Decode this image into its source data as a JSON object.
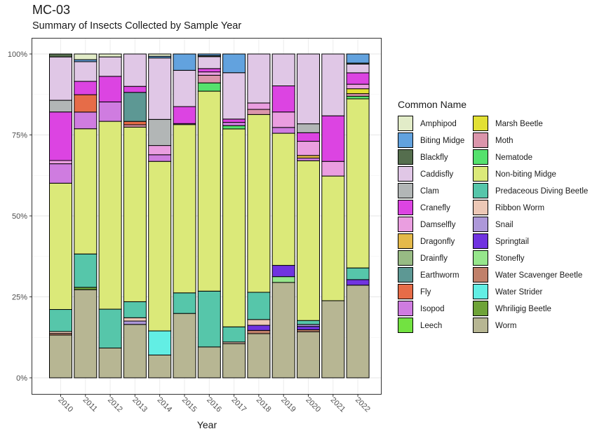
{
  "chart_data": {
    "type": "bar",
    "stacked": true,
    "normalized": true,
    "title": "MC-03",
    "subtitle": "Summary of Insects Collected by Sample Year",
    "xlabel": "Year",
    "ylabel": "",
    "ylim": [
      0,
      1
    ],
    "yticks": [
      "0%",
      "25%",
      "50%",
      "75%",
      "100%"
    ],
    "legend_title": "Common Name",
    "legend_position": "right",
    "categories": [
      "2010",
      "2011",
      "2012",
      "2013",
      "2014",
      "2015",
      "2016",
      "2017",
      "2018",
      "2019",
      "2020",
      "2021",
      "2022"
    ],
    "series": [
      {
        "name": "Amphipod",
        "color": "#e2ecc8",
        "values": [
          0,
          0.017,
          0.009,
          0,
          0.007,
          0,
          0,
          0,
          0,
          0,
          0,
          0,
          0
        ]
      },
      {
        "name": "Biting Midge",
        "color": "#62a2de",
        "values": [
          0,
          0.006,
          0,
          0,
          0.005,
          0.05,
          0.005,
          0.057,
          0,
          0,
          0,
          0,
          0.028
        ]
      },
      {
        "name": "Blackfly",
        "color": "#556e4e",
        "values": [
          0.009,
          0,
          0,
          0,
          0,
          0,
          0.003,
          0,
          0,
          0,
          0,
          0,
          0.003
        ]
      },
      {
        "name": "Caddisfly",
        "color": "#e0c7e6",
        "values": [
          0.134,
          0.059,
          0.06,
          0.097,
          0.186,
          0.111,
          0.036,
          0.141,
          0.153,
          0.099,
          0.212,
          0.19,
          0.027
        ]
      },
      {
        "name": "Clam",
        "color": "#b2b6b6",
        "values": [
          0.036,
          0,
          0,
          0,
          0.079,
          0,
          0,
          0,
          0,
          0,
          0.027,
          0,
          0
        ]
      },
      {
        "name": "Cranefly",
        "color": "#dc44e2",
        "values": [
          0.15,
          0.04,
          0.079,
          0.018,
          0,
          0.052,
          0.01,
          0.01,
          0,
          0.081,
          0.026,
          0.14,
          0.035
        ]
      },
      {
        "name": "Damselfly",
        "color": "#ea9ee0",
        "values": [
          0.01,
          0,
          0,
          0,
          0.028,
          0.003,
          0.01,
          0,
          0.02,
          0.048,
          0.043,
          0.045,
          0.014
        ]
      },
      {
        "name": "Dragonfly",
        "color": "#e4b94a",
        "values": [
          0,
          0,
          0,
          0,
          0,
          0,
          0,
          0,
          0,
          0,
          0.008,
          0,
          0
        ]
      },
      {
        "name": "Drainfly",
        "color": "#98bb84",
        "values": [
          0,
          0,
          0,
          0,
          0,
          0,
          0,
          0,
          0,
          0,
          0,
          0,
          0
        ]
      },
      {
        "name": "Earthworm",
        "color": "#5d9894",
        "values": [
          0,
          0,
          0,
          0.087,
          0,
          0,
          0,
          0,
          0,
          0,
          0,
          0,
          0
        ]
      },
      {
        "name": "Fly",
        "color": "#e66c48",
        "values": [
          0,
          0.052,
          0,
          0.01,
          0,
          0,
          0,
          0,
          0,
          0,
          0,
          0,
          0
        ]
      },
      {
        "name": "Isopod",
        "color": "#cf7ce0",
        "values": [
          0.06,
          0.05,
          0.06,
          0,
          0.02,
          0,
          0,
          0.01,
          0,
          0.018,
          0.008,
          0,
          0
        ]
      },
      {
        "name": "Leech",
        "color": "#72e241",
        "values": [
          0,
          0,
          0,
          0,
          0,
          0,
          0,
          0,
          0,
          0,
          0,
          0,
          0
        ]
      },
      {
        "name": "Marsh Beetle",
        "color": "#e2e034",
        "values": [
          0,
          0,
          0,
          0,
          0,
          0,
          0,
          0,
          0,
          0,
          0,
          0,
          0.015
        ]
      },
      {
        "name": "Moth",
        "color": "#db95ab",
        "values": [
          0,
          0,
          0,
          0.007,
          0,
          0,
          0.023,
          0,
          0.016,
          0,
          0,
          0,
          0.008
        ]
      },
      {
        "name": "Nematode",
        "color": "#55e16d",
        "values": [
          0,
          0,
          0,
          0,
          0,
          0,
          0.025,
          0.01,
          0,
          0,
          0,
          0,
          0.008
        ]
      },
      {
        "name": "Non-biting Midge",
        "color": "#dbe979",
        "values": [
          0.39,
          0.375,
          0.58,
          0.523,
          0.513,
          0.515,
          0.602,
          0.602,
          0.555,
          0.41,
          0.485,
          0.383,
          0.52
        ]
      },
      {
        "name": "Predaceous Diving Beetle",
        "color": "#56c6aa",
        "values": [
          0.068,
          0.1,
          0.12,
          0.048,
          0,
          0.063,
          0.168,
          0.046,
          0.085,
          0,
          0.012,
          0,
          0.036
        ]
      },
      {
        "name": "Ribbon Worm",
        "color": "#edc8b6",
        "values": [
          0.006,
          0,
          0,
          0.01,
          0,
          0,
          0,
          0.005,
          0.018,
          0,
          0,
          0,
          0
        ]
      },
      {
        "name": "Snail",
        "color": "#ad98d9",
        "values": [
          0,
          0,
          0,
          0.01,
          0,
          0,
          0,
          0,
          0,
          0,
          0.006,
          0,
          0
        ]
      },
      {
        "name": "Springtail",
        "color": "#7033e0",
        "values": [
          0,
          0,
          0,
          0,
          0,
          0,
          0,
          0,
          0.016,
          0.035,
          0.01,
          0,
          0.017
        ]
      },
      {
        "name": "Stonefly",
        "color": "#96e68c",
        "values": [
          0,
          0,
          0,
          0,
          0,
          0,
          0,
          0,
          0,
          0.018,
          0,
          0,
          0
        ]
      },
      {
        "name": "Water Scavenger Beetle",
        "color": "#c0806a",
        "values": [
          0.005,
          0,
          0,
          0,
          0,
          0,
          0,
          0,
          0.01,
          0,
          0.006,
          0,
          0
        ]
      },
      {
        "name": "Water Strider",
        "color": "#62eee4",
        "values": [
          0,
          0,
          0,
          0,
          0.073,
          0,
          0,
          0,
          0,
          0,
          0,
          0,
          0
        ]
      },
      {
        "name": "Whriligig Beetle",
        "color": "#6ea338",
        "values": [
          0,
          0.007,
          0,
          0,
          0,
          0,
          0,
          0,
          0,
          0,
          0,
          0,
          0
        ]
      },
      {
        "name": "Worm",
        "color": "#b7b693",
        "values": [
          0.132,
          0.264,
          0.092,
          0.16,
          0.069,
          0.197,
          0.093,
          0.104,
          0.138,
          0.296,
          0.14,
          0.237,
          0.285
        ]
      }
    ]
  }
}
